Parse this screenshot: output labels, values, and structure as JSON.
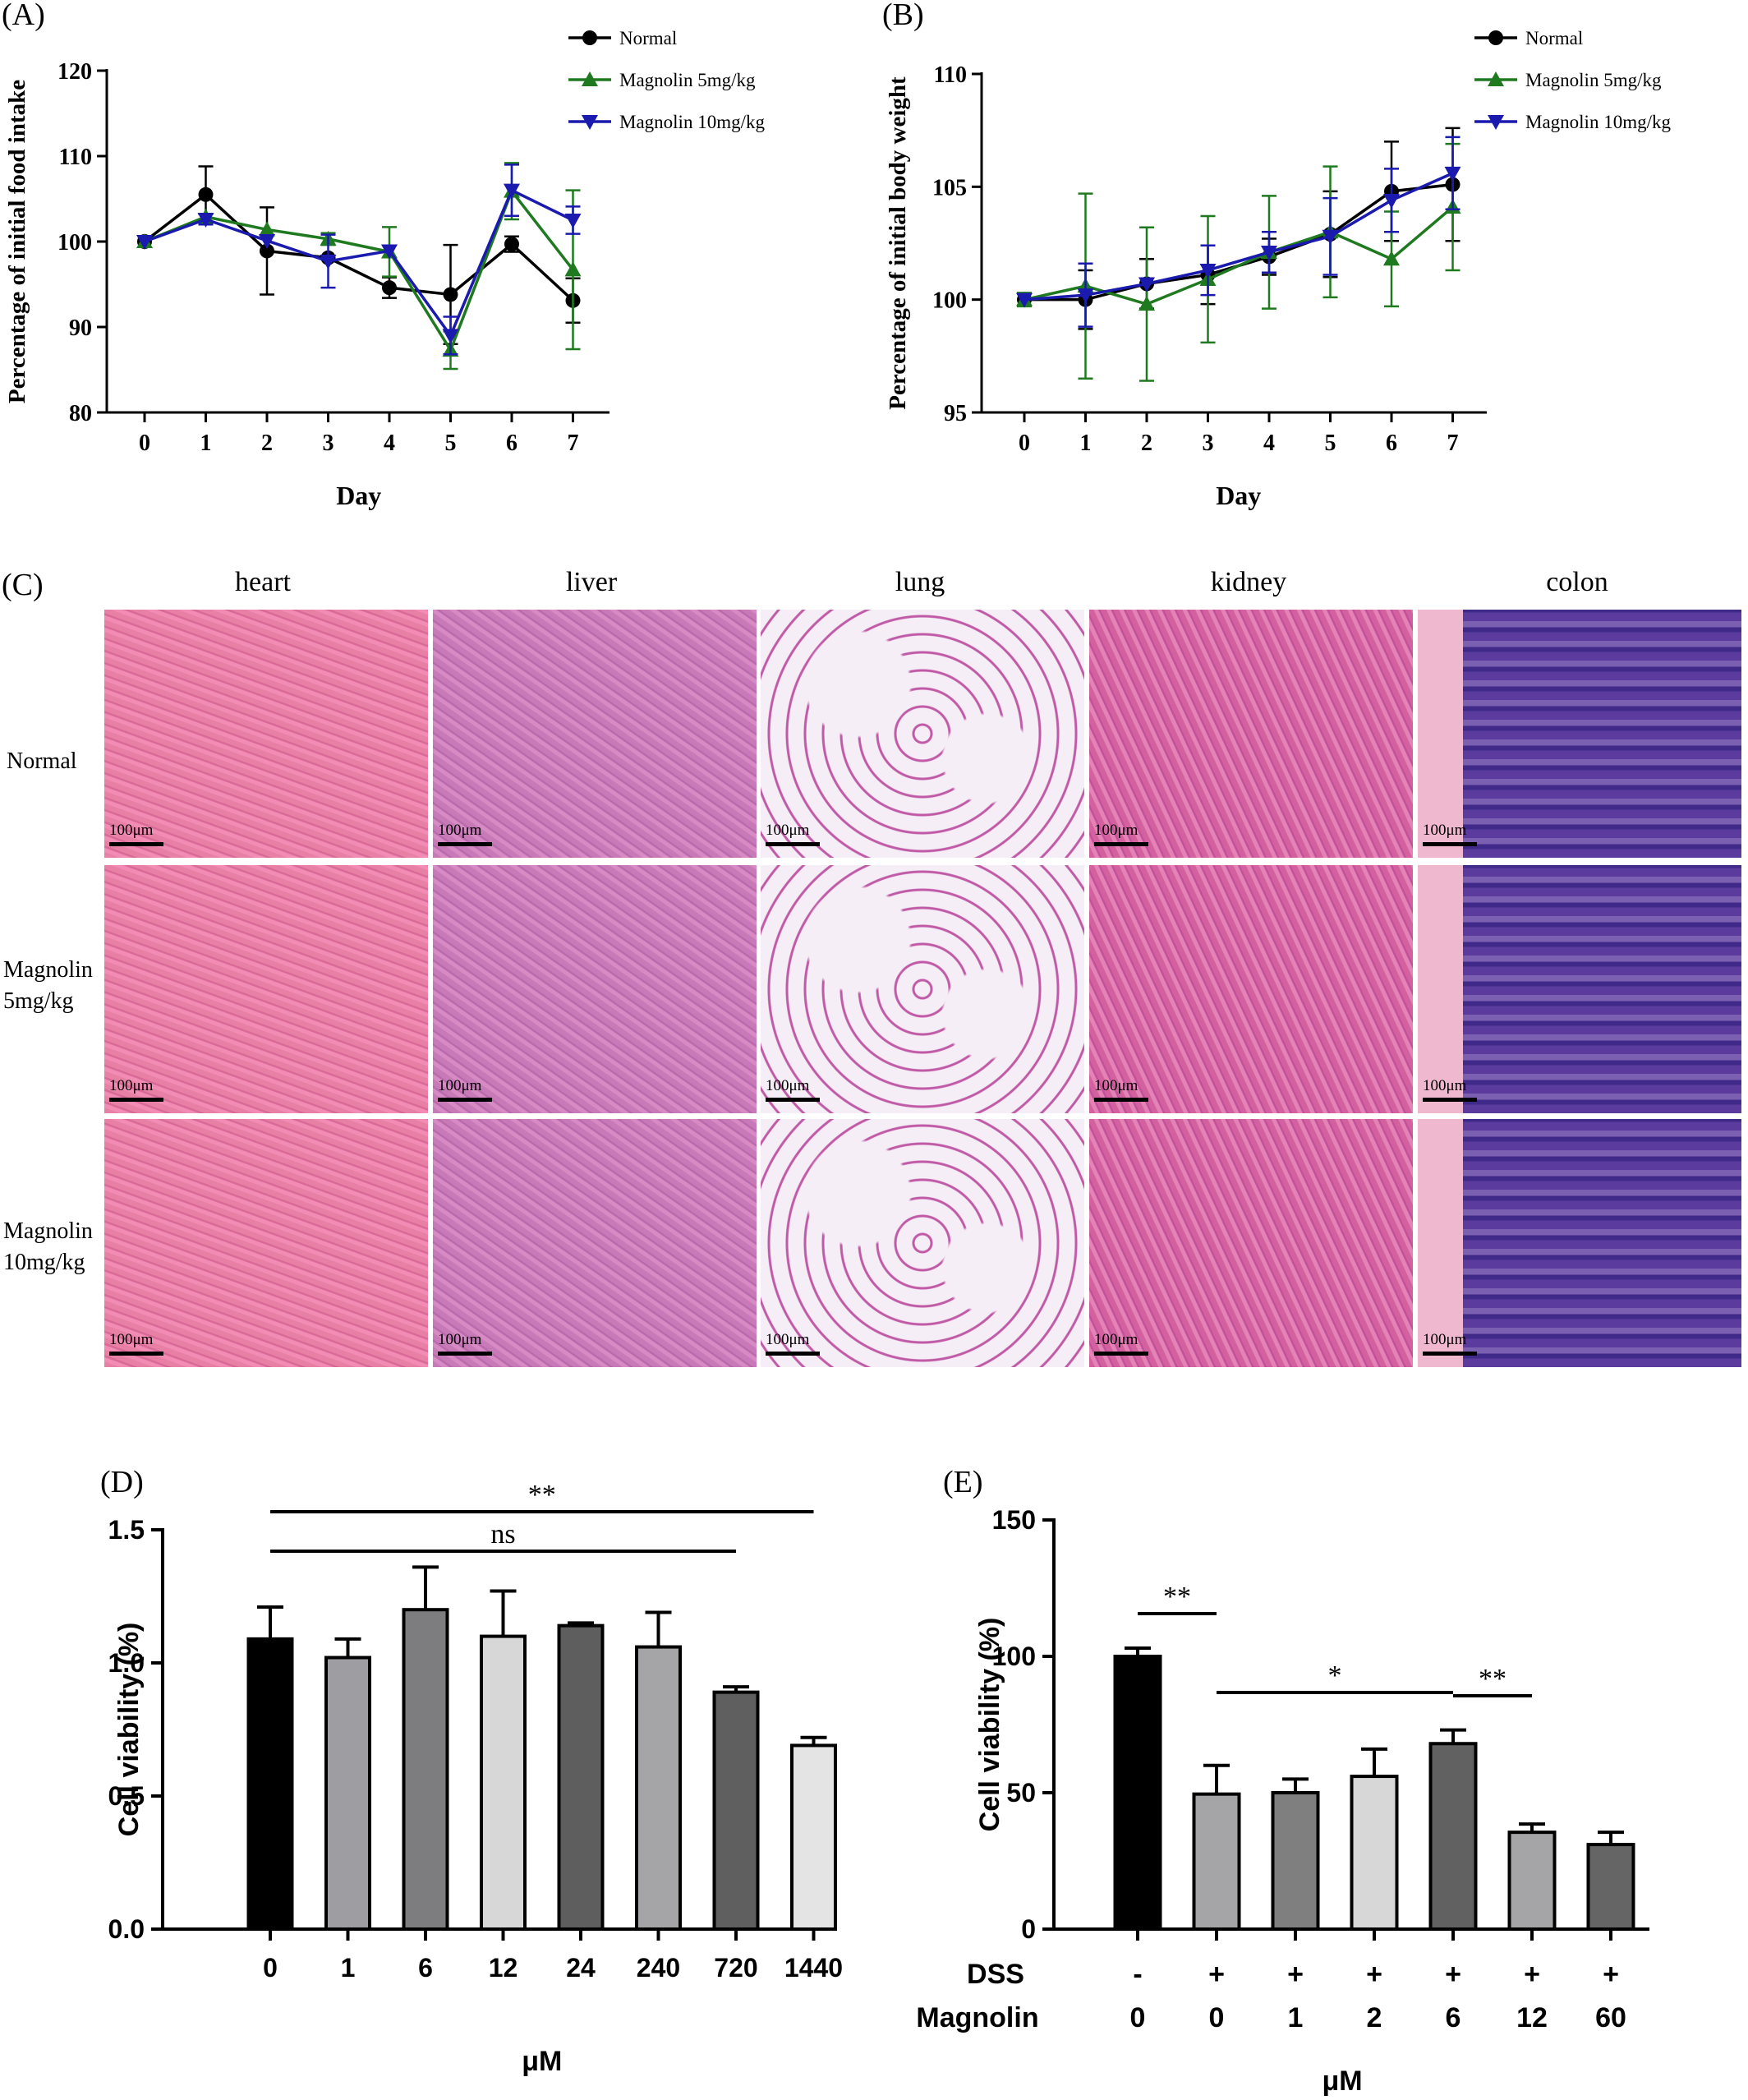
{
  "panels": {
    "A": "(A)",
    "B": "(B)",
    "C": "(C)",
    "D": "(D)",
    "E": "(E)"
  },
  "colors": {
    "normal": "#000000",
    "m5": "#1f7a1f",
    "m10": "#1a1aae"
  },
  "chart_data": [
    {
      "id": "A",
      "type": "line",
      "ylabel": "Percentage of initial food intake",
      "xlabel": "Day",
      "x": [
        0,
        1,
        2,
        3,
        4,
        5,
        6,
        7
      ],
      "ylim": [
        80,
        120
      ],
      "yticks": [
        80,
        90,
        100,
        110,
        120
      ],
      "series": [
        {
          "name": "Normal",
          "color": "#000000",
          "marker": "circle",
          "values": [
            100,
            105.5,
            98.9,
            98.1,
            94.6,
            93.8,
            99.7,
            93.1
          ],
          "errors": [
            0,
            3.3,
            5.1,
            0,
            1.2,
            5.8,
            0.9,
            2.6
          ]
        },
        {
          "name": "Magnolin 5mg/kg",
          "color": "#1f7a1f",
          "marker": "triangle-up",
          "values": [
            100,
            102.9,
            101.4,
            100.3,
            98.8,
            87.3,
            105.9,
            96.7
          ],
          "errors": [
            0,
            0,
            0,
            0.7,
            2.9,
            2.2,
            3.3,
            9.3
          ]
        },
        {
          "name": "Magnolin 10mg/kg",
          "color": "#1a1aae",
          "marker": "triangle-down",
          "values": [
            100,
            102.6,
            100.1,
            97.7,
            98.9,
            89.0,
            106.0,
            102.5
          ],
          "errors": [
            0,
            0.6,
            0,
            3.1,
            0,
            2.2,
            3.0,
            1.6
          ]
        }
      ]
    },
    {
      "id": "B",
      "type": "line",
      "ylabel": "Percentage of initial body weight",
      "xlabel": "Day",
      "x": [
        0,
        1,
        2,
        3,
        4,
        5,
        6,
        7
      ],
      "ylim": [
        95,
        110
      ],
      "yticks": [
        95,
        100,
        105,
        110
      ],
      "series": [
        {
          "name": "Normal",
          "color": "#000000",
          "marker": "circle",
          "values": [
            100,
            100,
            100.7,
            101.1,
            101.9,
            102.9,
            104.8,
            105.1
          ],
          "errors": [
            0,
            1.3,
            1.1,
            1.3,
            0.8,
            1.9,
            2.2,
            2.5
          ]
        },
        {
          "name": "Magnolin 5mg/kg",
          "color": "#1f7a1f",
          "marker": "triangle-up",
          "values": [
            100,
            100.6,
            99.8,
            100.9,
            102.1,
            103.0,
            101.8,
            104.1
          ],
          "errors": [
            0.3,
            4.1,
            3.4,
            2.8,
            2.5,
            2.9,
            2.1,
            2.8
          ]
        },
        {
          "name": "Magnolin 10mg/kg",
          "color": "#1a1aae",
          "marker": "triangle-down",
          "values": [
            100,
            100.2,
            100.7,
            101.3,
            102.1,
            102.8,
            104.4,
            105.6
          ],
          "errors": [
            0,
            1.4,
            0,
            1.1,
            0.9,
            1.7,
            1.4,
            1.6
          ]
        }
      ]
    },
    {
      "id": "D",
      "type": "bar",
      "ylabel": "Cell viability (%)",
      "xlabel": "μM",
      "categories": [
        "0",
        "1",
        "6",
        "12",
        "24",
        "240",
        "720",
        "1440"
      ],
      "values": [
        1.09,
        1.02,
        1.2,
        1.1,
        1.14,
        1.06,
        0.89,
        0.69
      ],
      "errors": [
        0.12,
        0.07,
        0.16,
        0.17,
        0.01,
        0.13,
        0.02,
        0.03
      ],
      "fills": [
        "#000000",
        "#9d9da2",
        "#7d7d80",
        "#d7d7d7",
        "#5e5e5e",
        "#a5a5a8",
        "#5f5f60",
        "#e4e4e4"
      ],
      "ylim": [
        0,
        1.5
      ],
      "yticks": [
        "0.0",
        "0.5",
        "1.0",
        "1.5"
      ],
      "annotations": [
        {
          "text": "**",
          "from": "0",
          "to": "1440"
        },
        {
          "text": "ns",
          "from": "0",
          "to": "720"
        }
      ]
    },
    {
      "id": "E",
      "type": "bar",
      "ylabel": "Cell viability (%)",
      "xlabel": "μM",
      "categories": [
        "0",
        "0",
        "1",
        "2",
        "6",
        "12",
        "60"
      ],
      "dss": [
        "-",
        "+",
        "+",
        "+",
        "+",
        "+",
        "+"
      ],
      "row_labels": {
        "dss": "DSS",
        "magnolin": "Magnolin"
      },
      "values": [
        100,
        49.5,
        50,
        56,
        68,
        35.5,
        31
      ],
      "errors": [
        3,
        10.5,
        5,
        10,
        5,
        3,
        4.5
      ],
      "fills": [
        "#000000",
        "#a5a5a8",
        "#7f7f80",
        "#d7d7d7",
        "#616161",
        "#a5a5a8",
        "#656566"
      ],
      "ylim": [
        0,
        150
      ],
      "yticks": [
        "0",
        "50",
        "100",
        "150"
      ],
      "annotations": [
        {
          "text": "**",
          "from": 0,
          "to": 1
        },
        {
          "text": "*",
          "from": 1,
          "to": 4
        },
        {
          "text": "**",
          "from": 4,
          "to": 5
        }
      ]
    }
  ],
  "histology": {
    "columns": [
      "heart",
      "liver",
      "lung",
      "kidney",
      "colon"
    ],
    "rows": [
      {
        "line1": "Normal",
        "line2": ""
      },
      {
        "line1": "Magnolin",
        "line2": "5mg/kg"
      },
      {
        "line1": "Magnolin",
        "line2": "10mg/kg"
      }
    ],
    "scale": "100μm"
  }
}
